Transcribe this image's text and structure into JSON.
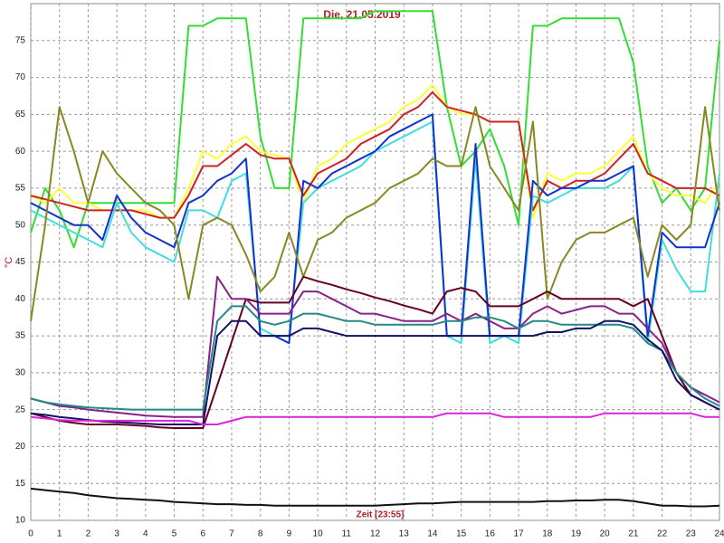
{
  "chart_data": {
    "type": "line",
    "title": "Die, 21.05.2019",
    "x_label": "Zeit [23:55]",
    "y_label": "°C",
    "x": [
      0,
      0.5,
      1,
      1.5,
      2,
      2.5,
      3,
      3.5,
      4,
      4.5,
      5,
      5.5,
      6,
      6.5,
      7,
      7.5,
      8,
      8.5,
      9,
      9.5,
      10,
      10.5,
      11,
      11.5,
      12,
      12.5,
      13,
      13.5,
      14,
      14.5,
      15,
      15.5,
      16,
      16.5,
      17,
      17.5,
      18,
      18.5,
      19,
      19.5,
      20,
      20.5,
      21,
      21.5,
      22,
      22.5,
      23,
      23.5,
      24
    ],
    "xlim": [
      0,
      24
    ],
    "xticks": [
      0,
      1,
      2,
      3,
      4,
      5,
      6,
      7,
      8,
      9,
      10,
      11,
      12,
      13,
      14,
      15,
      16,
      17,
      18,
      19,
      20,
      21,
      22,
      23,
      24
    ],
    "ylim": [
      10,
      80
    ],
    "yticks": [
      10,
      15,
      20,
      25,
      30,
      35,
      40,
      45,
      50,
      55,
      60,
      65,
      70,
      75
    ],
    "grid": true,
    "series": [
      {
        "color": "#33dd33",
        "values": [
          49,
          55,
          52,
          47,
          53,
          53,
          53,
          53,
          53,
          53,
          53,
          77,
          77,
          78,
          78,
          78,
          62,
          55,
          55,
          78,
          78,
          78,
          78,
          78,
          79,
          79,
          79,
          79,
          79,
          66,
          58,
          60,
          63,
          58,
          50,
          77,
          77,
          78,
          78,
          78,
          78,
          78,
          72,
          58,
          53,
          55,
          52,
          55,
          75
        ]
      },
      {
        "color": "#ffff33",
        "values": [
          54,
          53,
          55,
          53,
          53,
          52,
          52,
          52,
          52,
          51,
          51,
          55,
          60,
          59,
          61,
          62,
          60,
          59.5,
          59,
          53,
          58,
          59,
          61,
          62,
          63,
          64,
          66,
          67,
          69,
          66,
          65,
          65,
          64,
          64,
          64,
          51,
          57,
          56,
          57,
          57,
          58,
          60,
          62,
          57,
          55,
          54,
          54,
          53,
          56
        ]
      },
      {
        "color": "#cc2222",
        "values": [
          54,
          53.5,
          53,
          52.5,
          52,
          52,
          52,
          52,
          51.5,
          51,
          51,
          54,
          58,
          58,
          59.5,
          61,
          59.5,
          59,
          59,
          54,
          57,
          58,
          59,
          61,
          62,
          63,
          65,
          66,
          68,
          66,
          65.5,
          65,
          64,
          64,
          64,
          52,
          56,
          55,
          56,
          56,
          57,
          59,
          61,
          57,
          56,
          55,
          55,
          55,
          54
        ]
      },
      {
        "color": "#44dddd",
        "values": [
          52,
          51,
          50,
          49,
          48,
          47,
          53,
          49,
          47,
          46,
          45,
          52,
          52,
          51,
          56,
          57,
          36,
          35,
          35,
          53,
          55,
          56,
          57,
          58,
          60,
          61,
          62,
          63,
          64,
          35,
          34,
          59,
          34,
          35,
          34,
          54,
          53,
          54,
          55,
          55,
          55,
          56,
          58,
          34,
          48,
          44,
          41,
          41,
          57
        ]
      },
      {
        "color": "#1133cc",
        "values": [
          53,
          52,
          51,
          50,
          50,
          48,
          54,
          51,
          49,
          48,
          47,
          53,
          54,
          56,
          57,
          59,
          35,
          35,
          34,
          56,
          55,
          57,
          58,
          59,
          60,
          62,
          63,
          64,
          65,
          35,
          35,
          61,
          35,
          35,
          35,
          56,
          54,
          55,
          55,
          56,
          56,
          57,
          58,
          35,
          49,
          47,
          47,
          47,
          53
        ]
      },
      {
        "color": "#888822",
        "values": [
          37,
          50,
          66,
          60,
          53,
          60,
          57,
          55,
          53,
          52,
          50,
          40,
          50,
          51,
          50,
          46,
          41,
          43,
          49,
          43,
          48,
          49,
          51,
          52,
          53,
          55,
          56,
          57,
          59,
          58,
          58,
          66,
          58,
          55,
          52,
          64,
          40,
          45,
          48,
          49,
          49,
          50,
          51,
          43,
          50,
          48,
          50,
          66,
          52
        ]
      },
      {
        "color": "#660022",
        "values": [
          24.5,
          24,
          23.5,
          23.2,
          23,
          23,
          23,
          22.9,
          22.8,
          22.6,
          22.5,
          22.5,
          22.5,
          28.3,
          34.2,
          40,
          39.5,
          39.5,
          39.5,
          43,
          42.4,
          41.9,
          41.3,
          40.8,
          40.2,
          39.7,
          39.1,
          38.6,
          38,
          41,
          41.5,
          41,
          39,
          39,
          39,
          40,
          41,
          40,
          40,
          40,
          40,
          40,
          39,
          40,
          35,
          30,
          27,
          26,
          25
        ]
      },
      {
        "color": "#882288",
        "values": [
          26.5,
          26,
          25.5,
          25.3,
          25,
          24.8,
          24.6,
          24.4,
          24.2,
          24.1,
          24,
          24,
          24,
          43,
          40,
          40,
          38,
          38,
          38,
          41,
          41,
          40,
          39,
          38,
          38,
          37.5,
          37,
          37,
          37,
          38,
          37,
          38,
          37,
          36,
          36,
          38,
          39,
          38,
          38.5,
          39,
          39,
          38,
          38,
          36,
          34,
          30,
          28,
          27,
          26
        ]
      },
      {
        "color": "#228888",
        "values": [
          26.5,
          26,
          25.7,
          25.5,
          25.3,
          25.2,
          25.1,
          25,
          25,
          25,
          25,
          25,
          25,
          37,
          39,
          39,
          37,
          36.5,
          37,
          38,
          38,
          37.5,
          37,
          37,
          36.5,
          36.5,
          36.5,
          36.5,
          36.5,
          37,
          37,
          37.5,
          37.5,
          37,
          36,
          37,
          37,
          36.5,
          36.5,
          36.5,
          36.5,
          36.5,
          36,
          34,
          33,
          30,
          28,
          26.5,
          25.5
        ]
      },
      {
        "color": "#111166",
        "values": [
          24.5,
          24.3,
          24,
          23.8,
          23.6,
          23.4,
          23.3,
          23.2,
          23.1,
          23,
          23,
          23,
          23,
          35,
          37,
          37,
          35,
          35,
          35,
          36,
          36,
          35.5,
          35,
          35,
          35,
          35,
          35,
          35,
          35,
          35,
          35,
          35,
          35,
          35,
          35,
          35,
          35.5,
          35.5,
          36,
          36,
          37,
          37,
          36.5,
          34.5,
          33,
          29,
          27,
          26,
          25
        ]
      },
      {
        "color": "#dd22dd",
        "values": [
          24,
          23.8,
          23.6,
          23.5,
          23.5,
          23.5,
          23.5,
          23.5,
          23.5,
          23.5,
          23.5,
          23.5,
          23,
          23,
          23.5,
          24,
          24,
          24,
          24,
          24,
          24,
          24,
          24,
          24,
          24,
          24,
          24,
          24,
          24,
          24.5,
          24.5,
          24.5,
          24.5,
          24,
          24,
          24,
          24,
          24,
          24,
          24,
          24.5,
          24.5,
          24.5,
          24.5,
          24.5,
          24.5,
          24.5,
          24,
          24
        ]
      },
      {
        "color": "#111111",
        "values": [
          14.3,
          14.1,
          13.9,
          13.7,
          13.4,
          13.2,
          13,
          12.9,
          12.8,
          12.7,
          12.5,
          12.4,
          12.3,
          12.2,
          12.2,
          12.1,
          12.1,
          12,
          12,
          12,
          12,
          12,
          12,
          12,
          12,
          12.1,
          12.2,
          12.3,
          12.3,
          12.4,
          12.5,
          12.5,
          12.5,
          12.5,
          12.5,
          12.5,
          12.6,
          12.6,
          12.7,
          12.7,
          12.8,
          12.8,
          12.6,
          12.3,
          12,
          12,
          11.9,
          11.9,
          12
        ]
      }
    ]
  }
}
